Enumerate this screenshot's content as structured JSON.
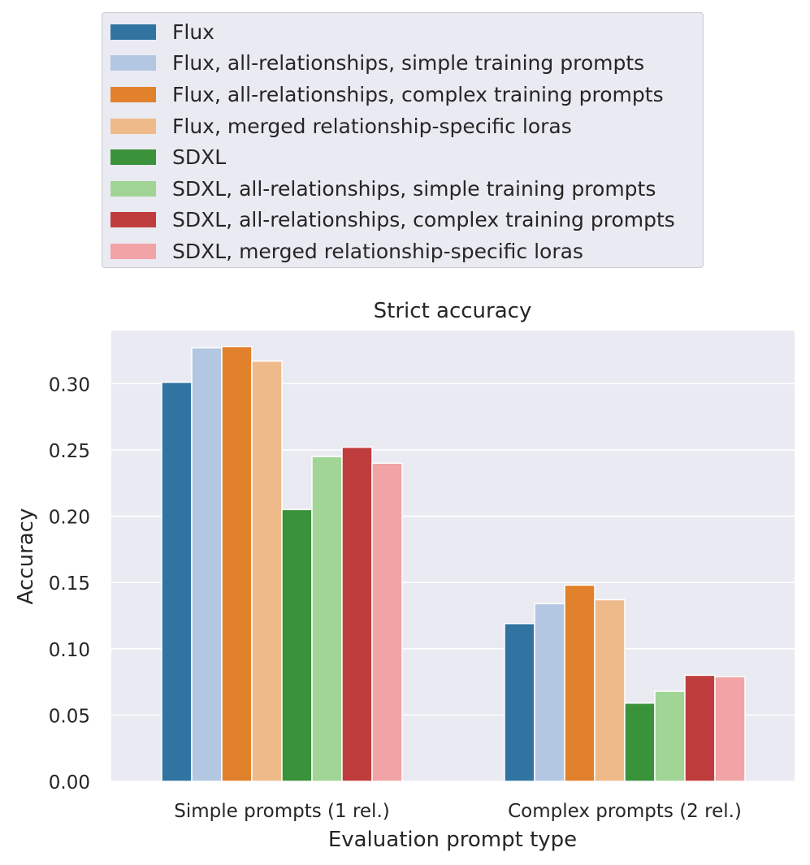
{
  "chart_data": {
    "type": "bar",
    "title": "Strict accuracy",
    "xlabel": "Evaluation prompt type",
    "ylabel": "Accuracy",
    "ylim": [
      0,
      0.34
    ],
    "yticks": [
      0.0,
      0.05,
      0.1,
      0.15,
      0.2,
      0.25,
      0.3
    ],
    "ytick_labels": [
      "0.00",
      "0.05",
      "0.10",
      "0.15",
      "0.20",
      "0.25",
      "0.30"
    ],
    "categories": [
      "Simple prompts (1 rel.)",
      "Complex prompts (2 rel.)"
    ],
    "legend_position": "top (outside, above plot)",
    "grid": true,
    "series": [
      {
        "name": "Flux",
        "color": "#3274a1",
        "values": [
          0.301,
          0.119
        ]
      },
      {
        "name": "Flux, all-relationships, simple training prompts",
        "color": "#b3c7e2",
        "values": [
          0.327,
          0.134
        ]
      },
      {
        "name": "Flux, all-relationships, complex training prompts",
        "color": "#e1812c",
        "values": [
          0.328,
          0.148
        ]
      },
      {
        "name": "Flux, merged relationship-specific loras",
        "color": "#efba8a",
        "values": [
          0.317,
          0.137
        ]
      },
      {
        "name": "SDXL",
        "color": "#3a923a",
        "values": [
          0.205,
          0.059
        ]
      },
      {
        "name": "SDXL, all-relationships, simple training prompts",
        "color": "#a1d595",
        "values": [
          0.245,
          0.068
        ]
      },
      {
        "name": "SDXL, all-relationships, complex training prompts",
        "color": "#c03d3e",
        "values": [
          0.252,
          0.08
        ]
      },
      {
        "name": "SDXL, merged relationship-specific loras",
        "color": "#f2a3a5",
        "values": [
          0.24,
          0.079
        ]
      }
    ]
  },
  "colors": {
    "plot_background": "#eaeaf2",
    "gridline": "#ffffff",
    "text": "#262626"
  }
}
